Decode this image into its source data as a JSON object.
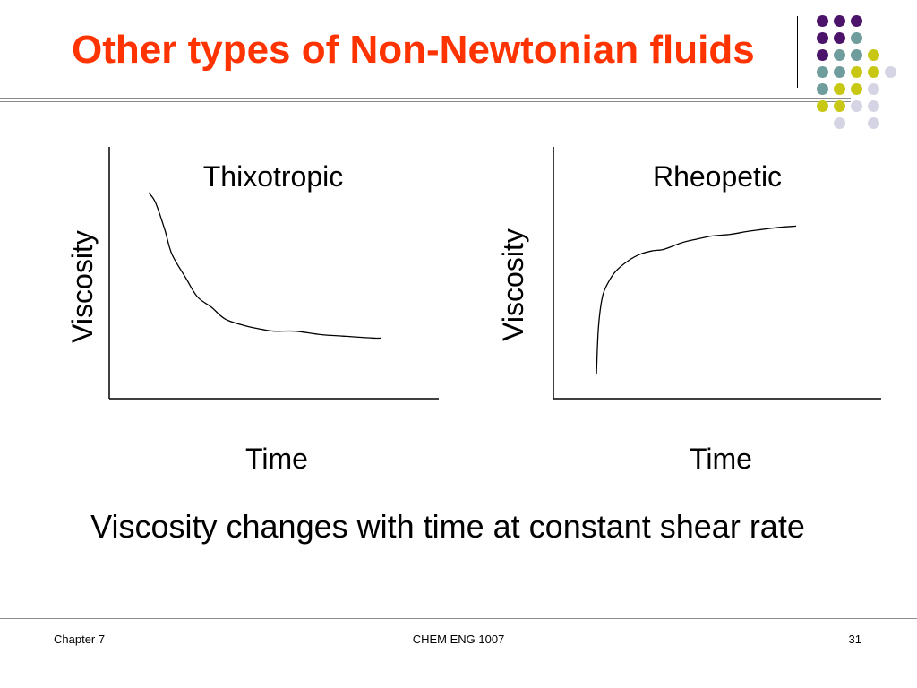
{
  "slide": {
    "title": "Other types of Non-Newtonian fluids",
    "caption": "Viscosity changes with time at constant shear rate",
    "footer": {
      "left": "Chapter 7",
      "center": "CHEM ENG 1007",
      "right": "31"
    }
  },
  "colors": {
    "title": "#ff3300",
    "dot_purple": "#4b1369",
    "dot_teal": "#6f9c9c",
    "dot_yellow": "#c8c814",
    "dot_lavender": "#d4d4e4"
  },
  "dot_pattern": [
    [
      "purple",
      "purple",
      "purple",
      null,
      null
    ],
    [
      "purple",
      "purple",
      "teal",
      null,
      null
    ],
    [
      "purple",
      "teal",
      "teal",
      "yellow",
      null
    ],
    [
      "teal",
      "teal",
      "yellow",
      "yellow",
      "lavender"
    ],
    [
      "teal",
      "yellow",
      "yellow",
      "lavender",
      null
    ],
    [
      "yellow",
      "yellow",
      "lavender",
      "lavender",
      null
    ],
    [
      null,
      "lavender",
      null,
      "lavender",
      null
    ]
  ],
  "chart_data": [
    {
      "type": "line",
      "title": "Thixotropic",
      "xlabel": "Time",
      "ylabel": "Viscosity",
      "grid": false,
      "series": [
        {
          "x": [
            0,
            0.03,
            0.07,
            0.1,
            0.16,
            0.21,
            0.27,
            0.33,
            0.42,
            0.49,
            0.54,
            0.63,
            0.74,
            0.85,
            0.96,
            1.0
          ],
          "y": [
            1.0,
            0.94,
            0.78,
            0.64,
            0.5,
            0.39,
            0.33,
            0.26,
            0.22,
            0.2,
            0.19,
            0.19,
            0.17,
            0.16,
            0.15,
            0.15
          ]
        }
      ]
    },
    {
      "type": "line",
      "title": "Rheopetic",
      "xlabel": "Time",
      "ylabel": "Viscosity",
      "grid": false,
      "series": [
        {
          "x": [
            0,
            0.01,
            0.03,
            0.06,
            0.1,
            0.16,
            0.22,
            0.28,
            0.34,
            0.43,
            0.5,
            0.58,
            0.67,
            0.77,
            0.9,
            1.0
          ],
          "y": [
            0.0,
            0.28,
            0.47,
            0.56,
            0.63,
            0.69,
            0.73,
            0.75,
            0.76,
            0.8,
            0.82,
            0.84,
            0.85,
            0.87,
            0.89,
            0.9
          ]
        }
      ]
    }
  ]
}
